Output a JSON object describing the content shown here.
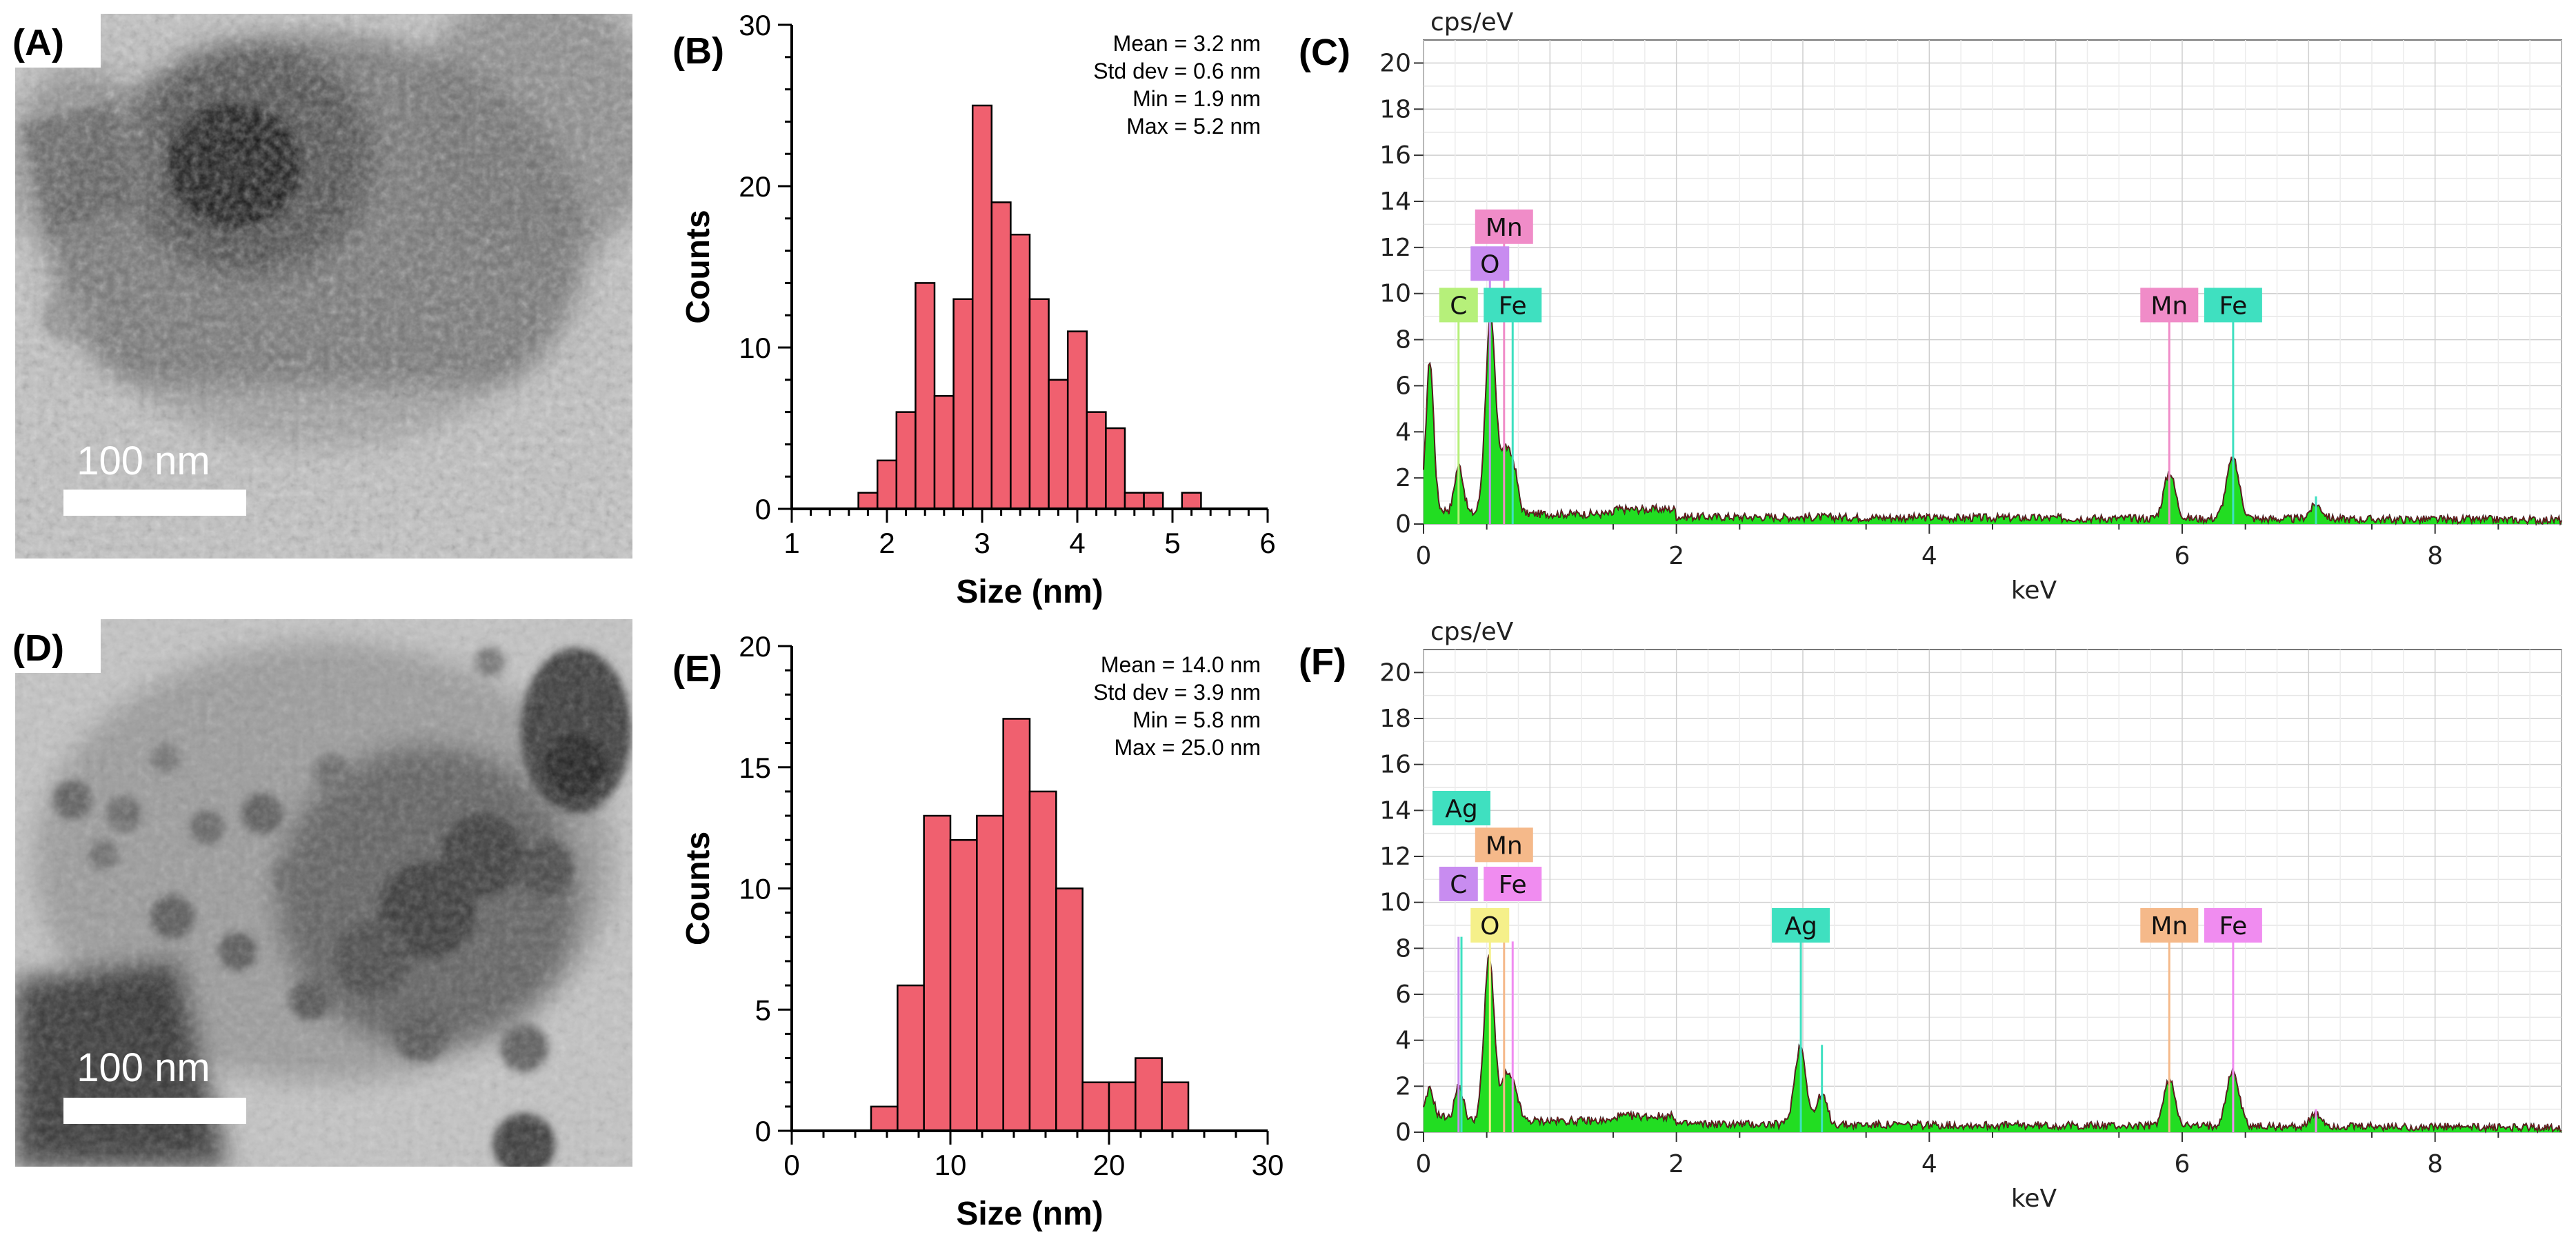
{
  "figure": {
    "panels": {
      "A": {
        "label": "(A)",
        "scale_bar_label": "100 nm"
      },
      "D": {
        "label": "(D)",
        "scale_bar_label": "100 nm"
      }
    }
  },
  "chart_data": [
    {
      "id": "B",
      "panel_label": "(B)",
      "type": "bar",
      "subtype": "histogram",
      "xlabel": "Size (nm)",
      "ylabel": "Counts",
      "xlim": [
        1,
        6
      ],
      "ylim": [
        0,
        30
      ],
      "xticks": [
        1,
        2,
        3,
        4,
        5,
        6
      ],
      "yticks": [
        0,
        10,
        20,
        30
      ],
      "xtick_labels": [
        "1",
        "2",
        "3",
        "4",
        "5",
        "6"
      ],
      "ytick_labels": [
        "0",
        "10",
        "20",
        "30"
      ],
      "bin_width": 0.2,
      "bins": [
        {
          "x0": 1.7,
          "count": 1
        },
        {
          "x0": 1.9,
          "count": 3
        },
        {
          "x0": 2.1,
          "count": 6
        },
        {
          "x0": 2.3,
          "count": 14
        },
        {
          "x0": 2.5,
          "count": 7
        },
        {
          "x0": 2.7,
          "count": 13
        },
        {
          "x0": 2.9,
          "count": 25
        },
        {
          "x0": 3.1,
          "count": 19
        },
        {
          "x0": 3.3,
          "count": 17
        },
        {
          "x0": 3.5,
          "count": 13
        },
        {
          "x0": 3.7,
          "count": 8
        },
        {
          "x0": 3.9,
          "count": 11
        },
        {
          "x0": 4.1,
          "count": 6
        },
        {
          "x0": 4.3,
          "count": 5
        },
        {
          "x0": 4.5,
          "count": 1
        },
        {
          "x0": 4.7,
          "count": 1
        },
        {
          "x0": 5.1,
          "count": 1
        }
      ],
      "stats": [
        "Mean = 3.2 nm",
        "Std dev = 0.6 nm",
        "Min = 1.9 nm",
        "Max = 5.2 nm"
      ],
      "bar_color": "#f0606f",
      "edge_color": "#000000"
    },
    {
      "id": "C",
      "panel_label": "(C)",
      "type": "line",
      "subtype": "EDS spectrum",
      "xlabel": "keV",
      "ylabel": "cps/eV",
      "xlim": [
        0,
        9
      ],
      "ylim": [
        0,
        21
      ],
      "xticks": [
        0,
        2,
        4,
        6,
        8
      ],
      "yticks": [
        0,
        2,
        4,
        6,
        8,
        10,
        12,
        14,
        16,
        18,
        20
      ],
      "peaks": [
        {
          "energy": 0.05,
          "height": 6.5,
          "width": 0.03
        },
        {
          "energy": 0.28,
          "height": 2.1,
          "width": 0.035
        },
        {
          "energy": 0.53,
          "height": 8.5,
          "width": 0.04
        },
        {
          "energy": 0.64,
          "height": 2.5,
          "width": 0.035
        },
        {
          "energy": 0.71,
          "height": 2.0,
          "width": 0.035
        },
        {
          "energy": 5.9,
          "height": 2.0,
          "width": 0.045
        },
        {
          "energy": 6.4,
          "height": 2.6,
          "width": 0.05
        },
        {
          "energy": 7.06,
          "height": 0.6,
          "width": 0.05
        }
      ],
      "baseline": 0.4,
      "element_markers": [
        {
          "symbol": "Mn",
          "energy": 0.637,
          "height": 12.9,
          "color": "#f08cc8"
        },
        {
          "symbol": "O",
          "energy": 0.525,
          "height": 11.3,
          "color": "#c88cf0"
        },
        {
          "symbol": "C",
          "energy": 0.277,
          "height": 9.5,
          "color": "#b6f07a"
        },
        {
          "symbol": "Fe",
          "energy": 0.705,
          "height": 9.5,
          "color": "#3fe0c0"
        },
        {
          "symbol": "Mn",
          "energy": 5.898,
          "height": 9.5,
          "color": "#f08cc8"
        },
        {
          "symbol": "Fe",
          "energy": 6.403,
          "height": 9.5,
          "color": "#3fe0c0"
        }
      ],
      "line_markers": [
        {
          "energy": 0.277,
          "height": 9.0,
          "color": "#b6f07a"
        },
        {
          "energy": 0.525,
          "height": 10.8,
          "color": "#c88cf0"
        },
        {
          "energy": 0.637,
          "height": 12.5,
          "color": "#f08cc8"
        },
        {
          "energy": 0.705,
          "height": 9.0,
          "color": "#3fe0c0"
        },
        {
          "energy": 5.898,
          "height": 9.0,
          "color": "#f08cc8"
        },
        {
          "energy": 6.403,
          "height": 9.0,
          "color": "#3fe0c0"
        },
        {
          "energy": 7.058,
          "height": 1.2,
          "color": "#3fe0c0"
        }
      ]
    },
    {
      "id": "E",
      "panel_label": "(E)",
      "type": "bar",
      "subtype": "histogram",
      "xlabel": "Size (nm)",
      "ylabel": "Counts",
      "xlim": [
        0,
        30
      ],
      "ylim": [
        0,
        20
      ],
      "xticks": [
        0,
        10,
        20,
        30
      ],
      "yticks": [
        0,
        5,
        10,
        15,
        20
      ],
      "xtick_labels": [
        "0",
        "10",
        "20",
        "30"
      ],
      "ytick_labels": [
        "0",
        "5",
        "10",
        "15",
        "20"
      ],
      "bin_width": 1.667,
      "bins": [
        {
          "x0": 5.0,
          "count": 1
        },
        {
          "x0": 6.667,
          "count": 6
        },
        {
          "x0": 8.333,
          "count": 13
        },
        {
          "x0": 10.0,
          "count": 12
        },
        {
          "x0": 11.667,
          "count": 13
        },
        {
          "x0": 13.333,
          "count": 17
        },
        {
          "x0": 15.0,
          "count": 14
        },
        {
          "x0": 16.667,
          "count": 10
        },
        {
          "x0": 18.333,
          "count": 2
        },
        {
          "x0": 20.0,
          "count": 2
        },
        {
          "x0": 21.667,
          "count": 3
        },
        {
          "x0": 23.333,
          "count": 2
        }
      ],
      "stats": [
        "Mean = 14.0 nm",
        "Std dev = 3.9 nm",
        "Min = 5.8 nm",
        "Max = 25.0 nm"
      ],
      "bar_color": "#f0606f",
      "edge_color": "#000000"
    },
    {
      "id": "F",
      "panel_label": "(F)",
      "type": "line",
      "subtype": "EDS spectrum",
      "xlabel": "keV",
      "ylabel": "cps/eV",
      "xlim": [
        0,
        9
      ],
      "ylim": [
        0,
        21
      ],
      "xticks": [
        0,
        2,
        4,
        6,
        8
      ],
      "yticks": [
        0,
        2,
        4,
        6,
        8,
        10,
        12,
        14,
        16,
        18,
        20
      ],
      "peaks": [
        {
          "energy": 0.05,
          "height": 1.2,
          "width": 0.03
        },
        {
          "energy": 0.28,
          "height": 1.5,
          "width": 0.035
        },
        {
          "energy": 0.52,
          "height": 7.2,
          "width": 0.04
        },
        {
          "energy": 0.65,
          "height": 1.8,
          "width": 0.035
        },
        {
          "energy": 0.72,
          "height": 1.3,
          "width": 0.035
        },
        {
          "energy": 2.98,
          "height": 3.4,
          "width": 0.045
        },
        {
          "energy": 3.15,
          "height": 1.3,
          "width": 0.04
        },
        {
          "energy": 5.9,
          "height": 2.0,
          "width": 0.045
        },
        {
          "energy": 6.4,
          "height": 2.4,
          "width": 0.05
        },
        {
          "energy": 7.06,
          "height": 0.5,
          "width": 0.05
        }
      ],
      "baseline": 0.45,
      "element_markers": [
        {
          "symbol": "Ag",
          "energy": 0.3,
          "height": 14.1,
          "color": "#3fe0c0"
        },
        {
          "symbol": "Mn",
          "energy": 0.637,
          "height": 12.5,
          "color": "#f5b98a"
        },
        {
          "symbol": "C",
          "energy": 0.277,
          "height": 10.8,
          "color": "#c88cf0"
        },
        {
          "symbol": "Fe",
          "energy": 0.705,
          "height": 10.8,
          "color": "#f08cf0"
        },
        {
          "symbol": "O",
          "energy": 0.525,
          "height": 9.0,
          "color": "#f5f08a"
        },
        {
          "symbol": "Ag",
          "energy": 2.984,
          "height": 9.0,
          "color": "#3fe0c0"
        },
        {
          "symbol": "Mn",
          "energy": 5.898,
          "height": 9.0,
          "color": "#f5b98a"
        },
        {
          "symbol": "Fe",
          "energy": 6.403,
          "height": 9.0,
          "color": "#f08cf0"
        }
      ],
      "line_markers": [
        {
          "energy": 0.277,
          "height": 8.5,
          "color": "#c88cf0"
        },
        {
          "energy": 0.3,
          "height": 8.5,
          "color": "#3fe0c0"
        },
        {
          "energy": 0.525,
          "height": 8.5,
          "color": "#f5f08a"
        },
        {
          "energy": 0.637,
          "height": 8.3,
          "color": "#f5b98a"
        },
        {
          "energy": 0.705,
          "height": 8.3,
          "color": "#f08cf0"
        },
        {
          "energy": 2.984,
          "height": 8.5,
          "color": "#3fe0c0"
        },
        {
          "energy": 3.151,
          "height": 3.8,
          "color": "#3fe0c0"
        },
        {
          "energy": 5.898,
          "height": 8.5,
          "color": "#f5b98a"
        },
        {
          "energy": 6.403,
          "height": 8.5,
          "color": "#f08cf0"
        },
        {
          "energy": 7.058,
          "height": 1.0,
          "color": "#f08cf0"
        }
      ]
    }
  ]
}
